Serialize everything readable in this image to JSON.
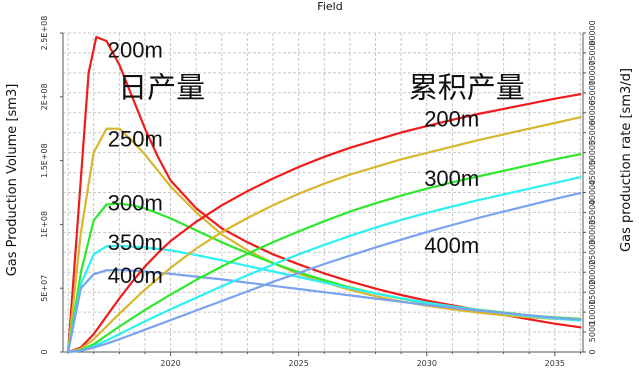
{
  "chart_data": {
    "type": "line",
    "title": "Field",
    "xlabel": "",
    "ylabel_left": "Gas Production Volume [sm3]",
    "ylabel_right": "Gas production rate [sm3/d]",
    "xlim": [
      2015.8,
      2036.1
    ],
    "ylim_left": [
      0,
      250000000
    ],
    "ylim_right": [
      0,
      80000
    ],
    "x_ticks": [
      2020,
      2025,
      2030,
      2035
    ],
    "x_tick_labels": [
      "2020",
      "2025",
      "2030",
      "2035"
    ],
    "y_left_ticks": [
      0,
      50000000,
      100000000,
      150000000,
      200000000,
      250000000
    ],
    "y_left_tick_labels": [
      "0",
      "5E+07",
      "1E+08",
      "1.5E+08",
      "2E+08",
      "2.5E+08"
    ],
    "y_right_ticks": [
      0,
      5000,
      10000,
      15000,
      20000,
      25000,
      30000,
      35000,
      40000,
      45000,
      50000,
      55000,
      60000,
      65000,
      70000,
      75000,
      80000
    ],
    "y_right_tick_labels": [
      "0",
      "5000",
      "10000",
      "15000",
      "20000",
      "25000",
      "30000",
      "35000",
      "40000",
      "45000",
      "50000",
      "55000",
      "60000",
      "65000",
      "70000",
      "75000",
      "80000"
    ],
    "grid": true,
    "series": [
      {
        "name": "200m",
        "group": "rate",
        "axis": "right",
        "color": "#ee1c1c",
        "x": [
          2016.0,
          2016.4,
          2016.8,
          2017.1,
          2017.5,
          2018.0,
          2018.5,
          2019.0,
          2019.5,
          2020.0,
          2021.0,
          2022.0,
          2023.0,
          2024.0,
          2025.0,
          2026.0,
          2027.0,
          2028.0,
          2029.0,
          2030.0,
          2031.0,
          2032.0,
          2033.0,
          2034.0,
          2035.0,
          2036.0
        ],
        "y": [
          0,
          35000,
          70000,
          79000,
          78000,
          72000,
          64000,
          56000,
          49000,
          43000,
          36000,
          31000,
          27500,
          24500,
          22000,
          19700,
          17700,
          15900,
          14300,
          12900,
          11700,
          10500,
          9300,
          8200,
          7100,
          6200
        ]
      },
      {
        "name": "250m",
        "group": "rate",
        "axis": "right",
        "color": "#d8b62e",
        "x": [
          2016.0,
          2016.5,
          2017.0,
          2017.5,
          2018.0,
          2018.5,
          2019.0,
          2019.5,
          2020.0,
          2021.0,
          2022.0,
          2023.0,
          2024.0,
          2025.0,
          2026.0,
          2027.0,
          2028.0,
          2029.0,
          2030.0,
          2031.0,
          2032.0,
          2033.0,
          2034.0,
          2035.0,
          2036.0
        ],
        "y": [
          0,
          30000,
          50000,
          56000,
          56000,
          53000,
          49500,
          45500,
          41500,
          35000,
          29500,
          25500,
          22300,
          19600,
          17500,
          15600,
          14000,
          12700,
          11600,
          10700,
          9900,
          9200,
          8700,
          8300,
          8000
        ]
      },
      {
        "name": "300m",
        "group": "rate",
        "axis": "right",
        "color": "#2ee82e",
        "x": [
          2016.0,
          2016.5,
          2017.0,
          2017.5,
          2018.0,
          2018.5,
          2019.0,
          2020.0,
          2021.0,
          2022.0,
          2023.0,
          2024.0,
          2025.0,
          2026.0,
          2027.0,
          2028.0,
          2029.0,
          2030.0,
          2031.0,
          2032.0,
          2033.0,
          2034.0,
          2035.0,
          2036.0
        ],
        "y": [
          0,
          20000,
          33000,
          37000,
          37200,
          36800,
          36000,
          33500,
          30500,
          27500,
          24800,
          22300,
          20000,
          18000,
          16200,
          14700,
          13400,
          12300,
          11400,
          10600,
          9900,
          9200,
          8700,
          8300
        ]
      },
      {
        "name": "350m",
        "group": "rate",
        "axis": "right",
        "color": "#2ef0f0",
        "x": [
          2016.0,
          2016.5,
          2017.0,
          2017.5,
          2018.0,
          2019.0,
          2020.0,
          2021.0,
          2022.0,
          2023.0,
          2024.0,
          2025.0,
          2026.0,
          2027.0,
          2028.0,
          2029.0,
          2030.0,
          2031.0,
          2032.0,
          2033.0,
          2034.0,
          2035.0,
          2036.0
        ],
        "y": [
          0,
          17000,
          24500,
          26500,
          26600,
          26200,
          25500,
          24300,
          23000,
          21600,
          20200,
          18800,
          17400,
          16000,
          14700,
          13500,
          12400,
          11400,
          10500,
          9700,
          9000,
          8400,
          7900
        ]
      },
      {
        "name": "400m",
        "group": "rate",
        "axis": "right",
        "color": "#7aa2f0",
        "x": [
          2016.0,
          2016.5,
          2017.0,
          2017.5,
          2018.0,
          2019.0,
          2020.0,
          2021.0,
          2022.0,
          2023.0,
          2024.0,
          2025.0,
          2026.0,
          2027.0,
          2028.0,
          2029.0,
          2030.0,
          2031.0,
          2032.0,
          2033.0,
          2034.0,
          2035.0,
          2036.0
        ],
        "y": [
          0,
          16000,
          19500,
          20500,
          20600,
          20200,
          19600,
          18900,
          18200,
          17400,
          16600,
          15800,
          15000,
          14200,
          13400,
          12600,
          11800,
          11100,
          10400,
          9800,
          9200,
          8600,
          8100
        ]
      },
      {
        "name": "200m",
        "group": "cumulative",
        "axis": "left",
        "color": "#ee1c1c",
        "x": [
          2016.0,
          2016.5,
          2017.0,
          2017.5,
          2018.0,
          2018.5,
          2019.0,
          2019.5,
          2020.0,
          2021.0,
          2022.0,
          2023.0,
          2024.0,
          2025.0,
          2026.0,
          2027.0,
          2028.0,
          2029.0,
          2030.0,
          2031.0,
          2032.0,
          2033.0,
          2034.0,
          2035.0,
          2036.0
        ],
        "y": [
          0,
          3500000,
          14000000,
          28000000,
          42000000,
          55000000,
          67000000,
          77500000,
          87000000,
          102000000,
          115000000,
          126000000,
          136000000,
          145000000,
          153000000,
          160000000,
          166000000,
          172000000,
          177000000,
          182000000,
          186500000,
          190500000,
          194500000,
          198500000,
          202000000
        ]
      },
      {
        "name": "250m",
        "group": "cumulative",
        "axis": "left",
        "color": "#d8b62e",
        "x": [
          2016.0,
          2016.5,
          2017.0,
          2017.5,
          2018.0,
          2019.0,
          2020.0,
          2021.0,
          2022.0,
          2023.0,
          2024.0,
          2025.0,
          2026.0,
          2027.0,
          2028.0,
          2029.0,
          2030.0,
          2031.0,
          2032.0,
          2033.0,
          2034.0,
          2035.0,
          2036.0
        ],
        "y": [
          0,
          2500000,
          10000000,
          20000000,
          30000000,
          49000000,
          66000000,
          81000000,
          94000000,
          105000000,
          115000000,
          124000000,
          132000000,
          139000000,
          145000000,
          151000000,
          156000000,
          161000000,
          166000000,
          170500000,
          175000000,
          179500000,
          184000000
        ]
      },
      {
        "name": "300m",
        "group": "cumulative",
        "axis": "left",
        "color": "#2ee82e",
        "x": [
          2016.0,
          2016.5,
          2017.0,
          2017.5,
          2018.0,
          2019.0,
          2020.0,
          2021.0,
          2022.0,
          2023.0,
          2024.0,
          2025.0,
          2026.0,
          2027.0,
          2028.0,
          2029.0,
          2030.0,
          2031.0,
          2032.0,
          2033.0,
          2034.0,
          2035.0,
          2036.0
        ],
        "y": [
          0,
          1500000,
          6000000,
          13000000,
          20000000,
          33000000,
          45000000,
          56500000,
          67000000,
          77000000,
          86000000,
          94500000,
          102500000,
          110000000,
          116500000,
          122500000,
          128000000,
          133000000,
          137500000,
          142000000,
          146500000,
          151000000,
          155000000
        ]
      },
      {
        "name": "350m",
        "group": "cumulative",
        "axis": "left",
        "color": "#2ef0f0",
        "x": [
          2016.0,
          2016.5,
          2017.0,
          2017.5,
          2018.0,
          2019.0,
          2020.0,
          2021.0,
          2022.0,
          2023.0,
          2024.0,
          2025.0,
          2026.0,
          2027.0,
          2028.0,
          2029.0,
          2030.0,
          2031.0,
          2032.0,
          2033.0,
          2034.0,
          2035.0,
          2036.0
        ],
        "y": [
          0,
          1200000,
          4500000,
          9000000,
          14000000,
          24000000,
          33500000,
          42500000,
          51500000,
          60000000,
          68500000,
          76500000,
          84000000,
          91000000,
          97500000,
          103500000,
          109000000,
          114000000,
          119000000,
          123500000,
          128000000,
          132500000,
          137000000
        ]
      },
      {
        "name": "400m",
        "group": "cumulative",
        "axis": "left",
        "color": "#7aa2f0",
        "x": [
          2016.0,
          2016.5,
          2017.0,
          2017.5,
          2018.0,
          2019.0,
          2020.0,
          2021.0,
          2022.0,
          2023.0,
          2024.0,
          2025.0,
          2026.0,
          2027.0,
          2028.0,
          2029.0,
          2030.0,
          2031.0,
          2032.0,
          2033.0,
          2034.0,
          2035.0,
          2036.0
        ],
        "y": [
          0,
          1000000,
          3500000,
          6500000,
          10000000,
          17500000,
          25000000,
          32500000,
          40000000,
          47500000,
          55000000,
          62000000,
          69000000,
          75500000,
          82000000,
          88000000,
          94000000,
          99500000,
          105000000,
          110000000,
          115000000,
          120000000,
          124500000
        ]
      }
    ],
    "annotations": [
      {
        "text": "200m",
        "x": 2017.55,
        "y_right": 73800
      },
      {
        "text": "250m",
        "x": 2017.55,
        "y_right": 51500
      },
      {
        "text": "300m",
        "x": 2017.55,
        "y_right": 35500
      },
      {
        "text": "350m",
        "x": 2017.55,
        "y_right": 25600
      },
      {
        "text": "400m",
        "x": 2017.55,
        "y_right": 17300
      },
      {
        "text": "日产量",
        "x": 2017.95,
        "y_right": 63800
      },
      {
        "text": "累积产量",
        "x": 2029.3,
        "y_right": 63800
      },
      {
        "text": "200m",
        "x": 2029.9,
        "y_right": 56500
      },
      {
        "text": "300m",
        "x": 2029.9,
        "y_right": 41600
      },
      {
        "text": "400m",
        "x": 2029.9,
        "y_right": 24800
      }
    ]
  }
}
